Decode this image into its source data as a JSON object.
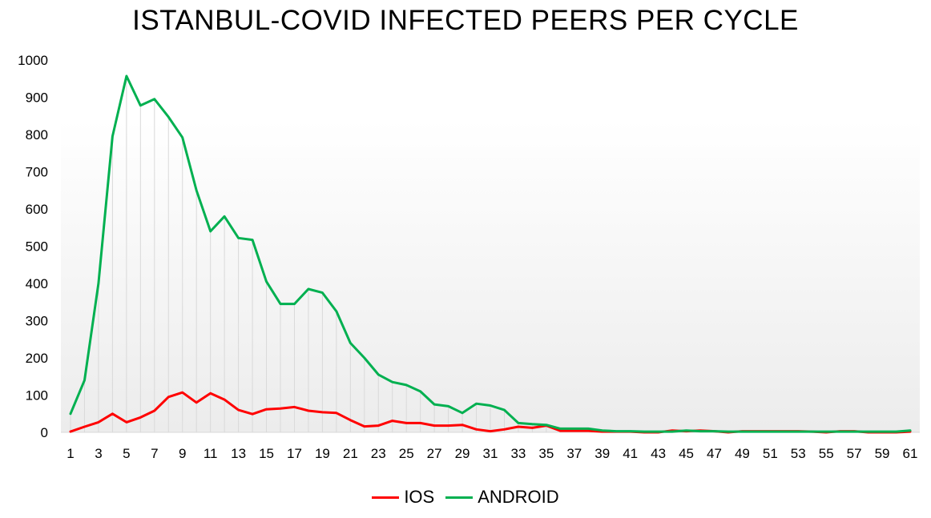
{
  "chart_data": {
    "type": "line",
    "title": "ISTANBUL-COVID INFECTED PEERS PER CYCLE",
    "xlabel": "",
    "ylabel": "",
    "ylim": [
      0,
      1000
    ],
    "yticks": [
      0,
      100,
      200,
      300,
      400,
      500,
      600,
      700,
      800,
      900,
      1000
    ],
    "x": [
      1,
      2,
      3,
      4,
      5,
      6,
      7,
      8,
      9,
      10,
      11,
      12,
      13,
      14,
      15,
      16,
      17,
      18,
      19,
      20,
      21,
      22,
      23,
      24,
      25,
      26,
      27,
      28,
      29,
      30,
      31,
      32,
      33,
      34,
      35,
      36,
      37,
      38,
      39,
      40,
      41,
      42,
      43,
      44,
      45,
      46,
      47,
      48,
      49,
      50,
      51,
      52,
      53,
      54,
      55,
      56,
      57,
      58,
      59,
      60,
      61
    ],
    "xtick_labels": [
      "1",
      "3",
      "5",
      "7",
      "9",
      "11",
      "13",
      "15",
      "17",
      "19",
      "21",
      "23",
      "25",
      "27",
      "29",
      "31",
      "33",
      "35",
      "37",
      "39",
      "41",
      "43",
      "45",
      "47",
      "49",
      "51",
      "53",
      "55",
      "57",
      "59",
      "61"
    ],
    "grid": "vertical drop lines per cycle",
    "legend_position": "bottom",
    "series": [
      {
        "name": "IOS",
        "color": "#ff0000",
        "values": [
          2,
          15,
          27,
          50,
          27,
          40,
          58,
          95,
          107,
          80,
          105,
          88,
          60,
          49,
          62,
          64,
          68,
          58,
          54,
          52,
          33,
          16,
          18,
          31,
          25,
          25,
          18,
          18,
          20,
          8,
          3,
          8,
          15,
          12,
          18,
          4,
          4,
          4,
          2,
          2,
          2,
          0,
          0,
          5,
          3,
          5,
          3,
          0,
          3,
          3,
          3,
          3,
          3,
          2,
          0,
          3,
          3,
          0,
          0,
          0,
          2
        ]
      },
      {
        "name": "ANDROID",
        "color": "#00b050",
        "values": [
          50,
          140,
          400,
          795,
          957,
          878,
          895,
          847,
          792,
          650,
          540,
          580,
          522,
          517,
          405,
          345,
          345,
          385,
          375,
          325,
          240,
          200,
          155,
          135,
          127,
          110,
          75,
          70,
          52,
          77,
          72,
          60,
          25,
          22,
          20,
          10,
          10,
          10,
          5,
          3,
          3,
          2,
          2,
          2,
          5,
          3,
          3,
          2,
          2,
          2,
          2,
          2,
          2,
          2,
          2,
          2,
          2,
          2,
          2,
          2,
          5
        ]
      }
    ]
  }
}
